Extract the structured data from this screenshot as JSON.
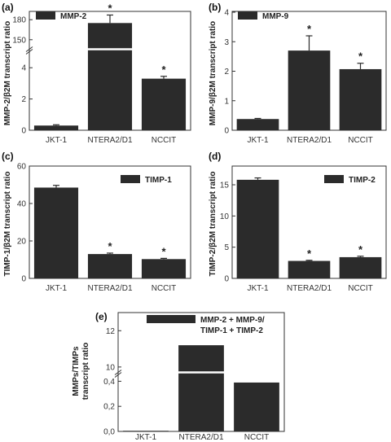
{
  "chart_data": [
    {
      "panel_label": "(a)",
      "type": "bar",
      "broken_axis": true,
      "categories": [
        "JKT-1",
        "NTERA2/D1",
        "NCCIT"
      ],
      "series": [
        {
          "name": "MMP-2",
          "values": [
            0.3,
            175,
            3.3
          ],
          "errors": [
            0.05,
            12,
            0.15
          ]
        }
      ],
      "significant": [
        false,
        true,
        true
      ],
      "significance_marker": "*",
      "ylabel": "MMP-2/β2M transcript ratio",
      "ylim": [
        0,
        190
      ],
      "lower_segment": [
        0,
        5
      ],
      "upper_segment": [
        140,
        190
      ],
      "y_tick_labels": [
        "0",
        "2",
        "4",
        "150",
        "180"
      ],
      "legend": "top-left"
    },
    {
      "panel_label": "(b)",
      "type": "bar",
      "categories": [
        "JKT-1",
        "NTERA2/D1",
        "NCCIT"
      ],
      "series": [
        {
          "name": "MMP-9",
          "values": [
            0.38,
            2.7,
            2.07
          ],
          "errors": [
            0.02,
            0.5,
            0.2
          ]
        }
      ],
      "significant": [
        false,
        true,
        true
      ],
      "significance_marker": "*",
      "ylabel": "MMP-9/β2M transcript ratio",
      "ylim": [
        0,
        4
      ],
      "y_tick_labels": [
        "0",
        "1",
        "2",
        "3",
        "4"
      ],
      "legend": "top-left"
    },
    {
      "panel_label": "(c)",
      "type": "bar",
      "categories": [
        "JKT-1",
        "NTERA2/D1",
        "NCCIT"
      ],
      "series": [
        {
          "name": "TIMP-1",
          "values": [
            48.5,
            13,
            10.3
          ],
          "errors": [
            1.2,
            0.5,
            0.4
          ]
        }
      ],
      "significant": [
        false,
        true,
        true
      ],
      "significance_marker": "*",
      "ylabel": "TIMP-1/β2M transcript ratio",
      "ylim": [
        0,
        60
      ],
      "y_tick_labels": [
        "0",
        "20",
        "40",
        "60"
      ],
      "legend": "top-right"
    },
    {
      "panel_label": "(d)",
      "type": "bar",
      "categories": [
        "JKT-1",
        "NTERA2/D1",
        "NCCIT"
      ],
      "series": [
        {
          "name": "TIMP-2",
          "values": [
            15.8,
            2.8,
            3.4
          ],
          "errors": [
            0.3,
            0.1,
            0.15
          ]
        }
      ],
      "significant": [
        false,
        true,
        true
      ],
      "significance_marker": "*",
      "ylabel": "TIMP-2/β2M transcript ratio",
      "ylim": [
        0,
        18
      ],
      "y_tick_labels": [
        "0",
        "5",
        "10",
        "15"
      ],
      "legend": "top-right"
    },
    {
      "panel_label": "(e)",
      "type": "bar",
      "broken_axis": true,
      "categories": [
        "JKT-1",
        "NTERA2/D1",
        "NCCIT"
      ],
      "series": [
        {
          "name": "MMP-2 + MMP-9/ TIMP-1 + TIMP-2",
          "values": [
            0.005,
            11.2,
            0.39
          ]
        }
      ],
      "legend_lines": [
        "MMP-2 + MMP-9/",
        "TIMP-1 + TIMP-2"
      ],
      "ylabel_lines": [
        "MMPs/TIMPs",
        "transcript ratio"
      ],
      "lower_segment": [
        0,
        0.5
      ],
      "upper_segment": [
        9.5,
        13
      ],
      "y_tick_labels": [
        "0,0",
        "0,2",
        "0,4",
        "10",
        "12"
      ],
      "legend": "top"
    }
  ],
  "colors": {
    "bar": "#2b2b2b",
    "axis": "#333333",
    "background": "#ffffff"
  }
}
